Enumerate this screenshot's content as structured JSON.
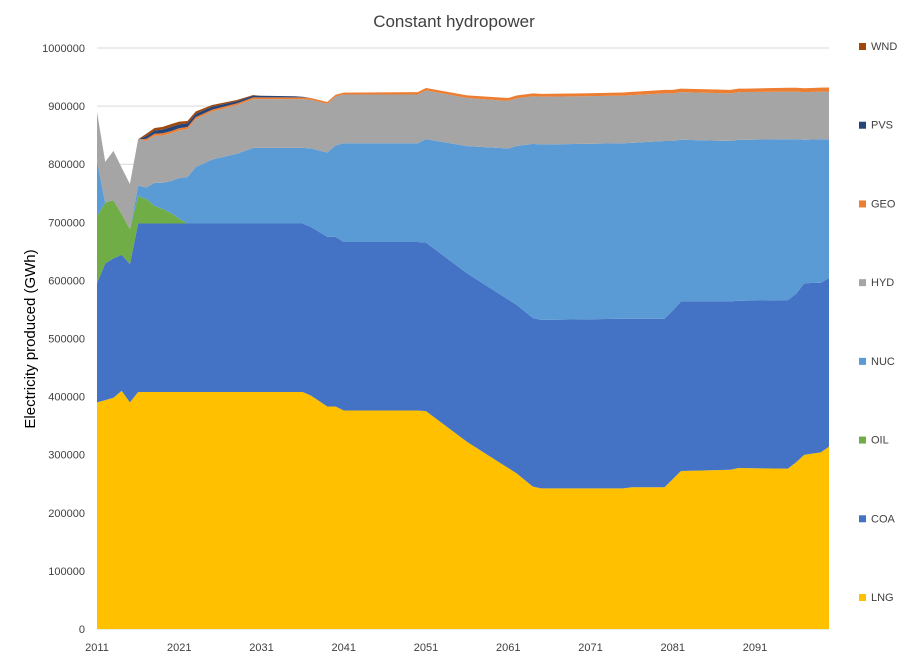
{
  "chart_data": {
    "type": "area",
    "stacked": true,
    "title": "Constant hydropower",
    "ylabel": "Electricity produced (GWh)",
    "xlabel": "",
    "ylim": [
      0,
      1000000
    ],
    "yticks": [
      0,
      100000,
      200000,
      300000,
      400000,
      500000,
      600000,
      700000,
      800000,
      900000,
      1000000
    ],
    "ytick_labels": [
      "0",
      "100000",
      "200000",
      "300000",
      "400000",
      "500000",
      "600000",
      "700000",
      "800000",
      "900000",
      "1000000"
    ],
    "xlim": [
      2011,
      2100
    ],
    "xticks": [
      2011,
      2021,
      2031,
      2041,
      2051,
      2061,
      2071,
      2081,
      2091
    ],
    "xtick_labels": [
      "2011",
      "2021",
      "2031",
      "2041",
      "2051",
      "2061",
      "2071",
      "2081",
      "2091"
    ],
    "grid": "horizontal",
    "legend_position": "right",
    "series": [
      {
        "name": "LNG",
        "color": "#FFC000",
        "points": [
          [
            2011,
            390000
          ],
          [
            2013,
            398000
          ],
          [
            2014,
            410000
          ],
          [
            2015,
            390000
          ],
          [
            2016,
            408000
          ],
          [
            2020,
            408000
          ],
          [
            2030,
            408000
          ],
          [
            2036,
            408000
          ],
          [
            2037,
            402000
          ],
          [
            2039,
            383000
          ],
          [
            2040,
            383000
          ],
          [
            2041,
            376000
          ],
          [
            2050,
            376000
          ],
          [
            2051,
            375000
          ],
          [
            2056,
            322000
          ],
          [
            2062,
            268000
          ],
          [
            2064,
            245000
          ],
          [
            2065,
            242000
          ],
          [
            2075,
            242000
          ],
          [
            2076,
            244000
          ],
          [
            2080,
            244000
          ],
          [
            2081,
            258000
          ],
          [
            2082,
            272000
          ],
          [
            2088,
            274000
          ],
          [
            2089,
            277000
          ],
          [
            2095,
            276000
          ],
          [
            2096,
            287000
          ],
          [
            2097,
            300000
          ],
          [
            2099,
            304000
          ],
          [
            2100,
            314000
          ]
        ]
      },
      {
        "name": "COA",
        "color": "#4472C4",
        "points": [
          [
            2011,
            205000
          ],
          [
            2012,
            235000
          ],
          [
            2013,
            240000
          ],
          [
            2014,
            234000
          ],
          [
            2015,
            238000
          ],
          [
            2016,
            290000
          ],
          [
            2020,
            290000
          ],
          [
            2030,
            290000
          ],
          [
            2036,
            290000
          ],
          [
            2037,
            290000
          ],
          [
            2039,
            292000
          ],
          [
            2040,
            292000
          ],
          [
            2041,
            290000
          ],
          [
            2050,
            290000
          ],
          [
            2051,
            290000
          ],
          [
            2056,
            290000
          ],
          [
            2062,
            290000
          ],
          [
            2064,
            290000
          ],
          [
            2065,
            290000
          ],
          [
            2075,
            292000
          ],
          [
            2076,
            290000
          ],
          [
            2080,
            290000
          ],
          [
            2081,
            290000
          ],
          [
            2082,
            292000
          ],
          [
            2088,
            290000
          ],
          [
            2089,
            288000
          ],
          [
            2095,
            290000
          ],
          [
            2096,
            290000
          ],
          [
            2097,
            295000
          ],
          [
            2099,
            292000
          ],
          [
            2100,
            290000
          ]
        ]
      },
      {
        "name": "OIL",
        "color": "#70AD47",
        "points": [
          [
            2011,
            115000
          ],
          [
            2012,
            105000
          ],
          [
            2013,
            100000
          ],
          [
            2014,
            70000
          ],
          [
            2015,
            60000
          ],
          [
            2016,
            47000
          ],
          [
            2017,
            42000
          ],
          [
            2018,
            30000
          ],
          [
            2019,
            25000
          ],
          [
            2020,
            18000
          ],
          [
            2021,
            8000
          ],
          [
            2022,
            0
          ],
          [
            2100,
            0
          ]
        ]
      },
      {
        "name": "NUC",
        "color": "#5B9BD5",
        "points": [
          [
            2011,
            95000
          ],
          [
            2012,
            0
          ],
          [
            2013,
            0
          ],
          [
            2014,
            0
          ],
          [
            2015,
            0
          ],
          [
            2016,
            18000
          ],
          [
            2017,
            20000
          ],
          [
            2018,
            40000
          ],
          [
            2019,
            45000
          ],
          [
            2020,
            55000
          ],
          [
            2021,
            70000
          ],
          [
            2022,
            80000
          ],
          [
            2023,
            97000
          ],
          [
            2025,
            110000
          ],
          [
            2028,
            120000
          ],
          [
            2030,
            130000
          ],
          [
            2036,
            130000
          ],
          [
            2038,
            140000
          ],
          [
            2039,
            145000
          ],
          [
            2041,
            170000
          ],
          [
            2050,
            170000
          ],
          [
            2061,
            260000
          ],
          [
            2064,
            300000
          ],
          [
            2065,
            302000
          ],
          [
            2075,
            302000
          ],
          [
            2080,
            306000
          ],
          [
            2081,
            292000
          ],
          [
            2082,
            278000
          ],
          [
            2088,
            276000
          ],
          [
            2089,
            277000
          ],
          [
            2095,
            277000
          ],
          [
            2096,
            266000
          ],
          [
            2097,
            247000
          ],
          [
            2099,
            247000
          ],
          [
            2100,
            239000
          ]
        ]
      },
      {
        "name": "HYD",
        "color": "#A5A5A5",
        "points": [
          [
            2011,
            85000
          ],
          [
            2012,
            70000
          ],
          [
            2013,
            85000
          ],
          [
            2014,
            80000
          ],
          [
            2015,
            78000
          ],
          [
            2016,
            80000
          ],
          [
            2020,
            82000
          ],
          [
            2025,
            83000
          ],
          [
            2030,
            84000
          ],
          [
            2040,
            84000
          ],
          [
            2050,
            84000
          ],
          [
            2060,
            82000
          ],
          [
            2070,
            82000
          ],
          [
            2080,
            82000
          ],
          [
            2090,
            82000
          ],
          [
            2100,
            82000
          ]
        ]
      },
      {
        "name": "GEO",
        "color": "#ED7D31",
        "points": [
          [
            2011,
            0
          ],
          [
            2016,
            0
          ],
          [
            2017,
            3000
          ],
          [
            2020,
            4000
          ],
          [
            2025,
            3000
          ],
          [
            2030,
            3000
          ],
          [
            2040,
            3000
          ],
          [
            2050,
            4000
          ],
          [
            2060,
            5000
          ],
          [
            2070,
            5000
          ],
          [
            2080,
            6000
          ],
          [
            2090,
            6000
          ],
          [
            2100,
            7000
          ]
        ]
      },
      {
        "name": "PVS",
        "color": "#264478",
        "points": [
          [
            2011,
            0
          ],
          [
            2016,
            0
          ],
          [
            2017,
            5000
          ],
          [
            2020,
            7000
          ],
          [
            2025,
            5000
          ],
          [
            2030,
            3000
          ],
          [
            2035,
            2000
          ],
          [
            2036,
            1000
          ],
          [
            2037,
            0
          ],
          [
            2100,
            0
          ]
        ]
      },
      {
        "name": "WND",
        "color": "#9E480E",
        "points": [
          [
            2011,
            0
          ],
          [
            2016,
            0
          ],
          [
            2017,
            4000
          ],
          [
            2020,
            5000
          ],
          [
            2025,
            3000
          ],
          [
            2028,
            2000
          ],
          [
            2030,
            1000
          ],
          [
            2031,
            0
          ],
          [
            2100,
            0
          ]
        ]
      }
    ]
  }
}
